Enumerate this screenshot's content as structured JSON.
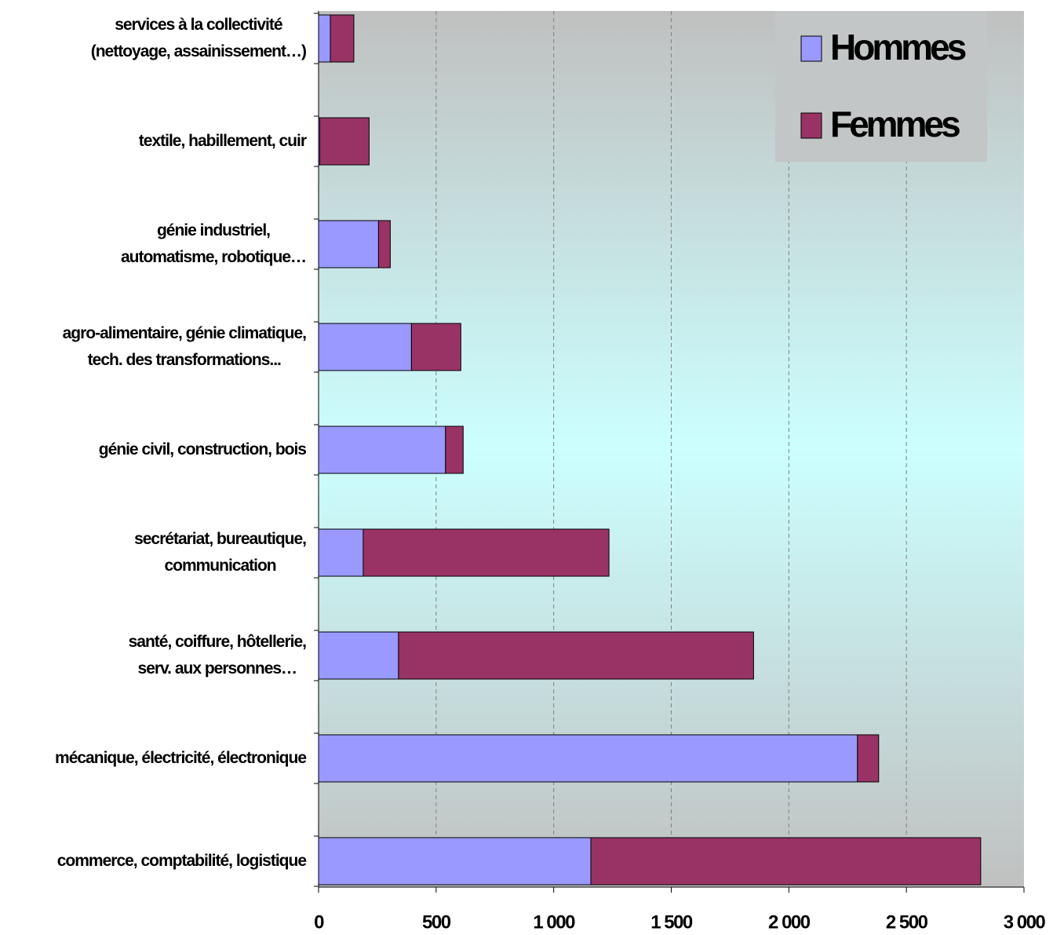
{
  "chart_data": {
    "type": "bar",
    "orientation": "horizontal",
    "stacked": true,
    "categories": [
      "services à la collectivité\n(nettoyage, assainissement…)",
      "textile, habillement, cuir",
      "génie industriel,\nautomatisme, robotique…",
      "agro-alimentaire, génie climatique,\ntech. des transformations...",
      "génie civil, construction, bois",
      "secrétariat, bureautique,\ncommunication",
      "santé, coiffure, hôtellerie,\nserv. aux personnes…",
      "mécanique, électricité, électronique",
      "commerce, comptabilité, logistique"
    ],
    "series": [
      {
        "name": "Hommes",
        "color": "#9999ff",
        "values": [
          50,
          5,
          255,
          395,
          540,
          190,
          340,
          2292,
          1158
        ]
      },
      {
        "name": "Femmes",
        "color": "#993366",
        "values": [
          100,
          210,
          50,
          210,
          75,
          1045,
          1510,
          90,
          1658
        ]
      }
    ],
    "xlim": [
      0,
      3000
    ],
    "xticks": [
      0,
      500,
      {
        "value": 1000,
        "label": "1 000"
      },
      {
        "value": 1500,
        "label": "1 500"
      },
      {
        "value": 2000,
        "label": "2 000"
      },
      {
        "value": 2500,
        "label": "2 500"
      },
      {
        "value": 3000,
        "label": "3 000"
      }
    ],
    "grid": true,
    "legend": "upper right"
  }
}
